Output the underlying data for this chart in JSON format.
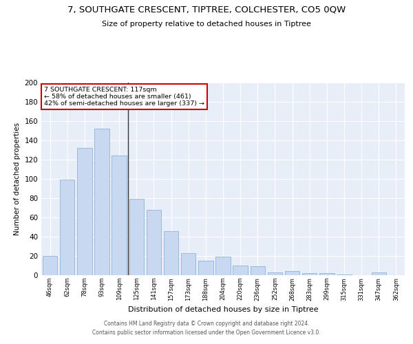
{
  "title1": "7, SOUTHGATE CRESCENT, TIPTREE, COLCHESTER, CO5 0QW",
  "title2": "Size of property relative to detached houses in Tiptree",
  "xlabel": "Distribution of detached houses by size in Tiptree",
  "ylabel": "Number of detached properties",
  "categories": [
    "46sqm",
    "62sqm",
    "78sqm",
    "93sqm",
    "109sqm",
    "125sqm",
    "141sqm",
    "157sqm",
    "173sqm",
    "188sqm",
    "204sqm",
    "220sqm",
    "236sqm",
    "252sqm",
    "268sqm",
    "283sqm",
    "299sqm",
    "315sqm",
    "331sqm",
    "347sqm",
    "362sqm"
  ],
  "values": [
    20,
    99,
    132,
    152,
    124,
    79,
    68,
    46,
    23,
    15,
    19,
    10,
    9,
    3,
    4,
    2,
    2,
    1,
    0,
    3,
    0
  ],
  "bar_color": "#c8d8f0",
  "bar_edge_color": "#8ab4d8",
  "highlight_index": 4,
  "highlight_line_color": "#333333",
  "annotation_line1": "7 SOUTHGATE CRESCENT: 117sqm",
  "annotation_line2": "← 58% of detached houses are smaller (461)",
  "annotation_line3": "42% of semi-detached houses are larger (337) →",
  "annotation_box_color": "#ffffff",
  "annotation_box_edge_color": "#cc0000",
  "ylim": [
    0,
    200
  ],
  "yticks": [
    0,
    20,
    40,
    60,
    80,
    100,
    120,
    140,
    160,
    180,
    200
  ],
  "bg_color": "#e8eef8",
  "grid_color": "#ffffff",
  "footer_line1": "Contains HM Land Registry data © Crown copyright and database right 2024.",
  "footer_line2": "Contains public sector information licensed under the Open Government Licence v3.0."
}
